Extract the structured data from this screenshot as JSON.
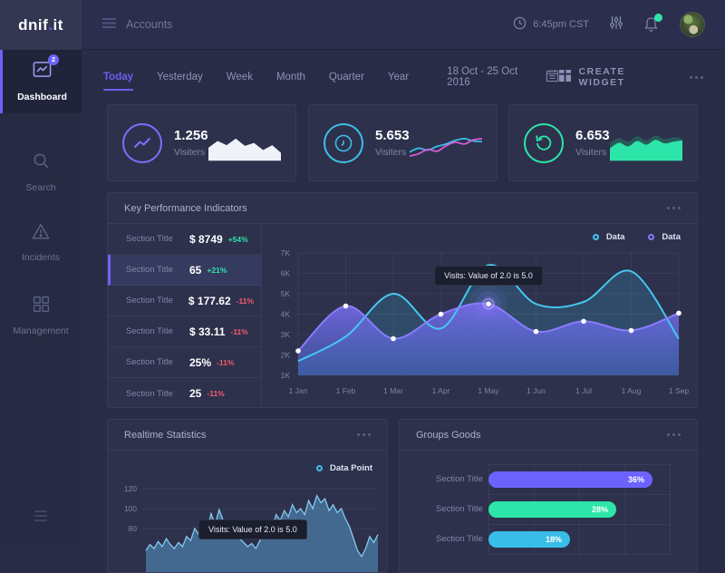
{
  "colors": {
    "accent": "#6C63FF",
    "cyan": "#3FBEEA",
    "green": "#2EE5A9",
    "magenta": "#D65BD6",
    "red": "#F35B6E",
    "white_line": "#EFF2F7"
  },
  "brand": {
    "logo_left": "dnif",
    "logo_dot": ".",
    "logo_right": "it"
  },
  "topbar": {
    "accounts_label": "Accounts",
    "time": "6:45pm CST"
  },
  "sidebar": {
    "items": [
      {
        "label": "Dashboard",
        "badge": "2",
        "active": true
      },
      {
        "label": "Search"
      },
      {
        "label": "Incidents"
      },
      {
        "label": "Management"
      }
    ]
  },
  "filters": {
    "tabs": [
      "Today",
      "Yesterday",
      "Week",
      "Month",
      "Quarter",
      "Year"
    ],
    "active_tab": "Today",
    "date_range": "18 Oct - 25 Oct 2016",
    "create_widget_label": "CREATE WIDGET"
  },
  "stat_cards": [
    {
      "value": "1.256",
      "label": "Visiters",
      "icon": "trend-line",
      "accent": "#7C6FFF",
      "spark": {
        "type": "area",
        "color": "#EFF2F7",
        "values": [
          38,
          60,
          46,
          68,
          44,
          54,
          30,
          46,
          20
        ]
      }
    },
    {
      "value": "5.653",
      "label": "Visiters",
      "icon": "clock",
      "accent": "#3FBEEA",
      "spark": {
        "type": "lines",
        "series": [
          {
            "color": "#3FBEEA",
            "values": [
              24,
              36,
              30,
              42,
              50,
              62,
              68,
              60,
              58
            ]
          },
          {
            "color": "#D65BD6",
            "values": [
              10,
              18,
              32,
              26,
              44,
              56,
              50,
              64,
              68
            ]
          }
        ]
      }
    },
    {
      "value": "6.653",
      "label": "Visiters",
      "icon": "refresh",
      "accent": "#2EE5A9",
      "spark": {
        "type": "area2",
        "series": [
          {
            "color": "#265a58",
            "values": [
              54,
              70,
              58,
              76,
              62,
              78,
              66,
              72,
              68
            ]
          },
          {
            "color": "#2EE5A9",
            "values": [
              36,
              54,
              42,
              60,
              48,
              64,
              52,
              58,
              62
            ]
          }
        ]
      }
    }
  ],
  "kpi": {
    "rows": [
      {
        "title": "Section Title",
        "value": "$ 8749",
        "delta": "+54%",
        "trend": "up"
      },
      {
        "title": "Section Title",
        "value": "65",
        "delta": "+21%",
        "trend": "up",
        "active": true
      },
      {
        "title": "Section Title",
        "value": "$ 177.62",
        "delta": "-11%",
        "trend": "down"
      },
      {
        "title": "Section Title",
        "value": "$ 33.11",
        "delta": "-11%",
        "trend": "down"
      },
      {
        "title": "Section Title",
        "value": "25%",
        "delta": "-11%",
        "trend": "down"
      },
      {
        "title": "Section Title",
        "value": "25",
        "delta": "-11%",
        "trend": "down"
      }
    ]
  },
  "chart_data": [
    {
      "id": "kpi-trend",
      "type": "line",
      "title": "Key Performance Indicators",
      "x_labels": [
        "1 Jan",
        "1 Feb",
        "1 Mar",
        "1 Apr",
        "1 May",
        "1 Jun",
        "1 Jul",
        "1 Aug",
        "1 Sep"
      ],
      "y_ticks": [
        "7K",
        "6K",
        "5K",
        "4K",
        "3K",
        "2K",
        "1K"
      ],
      "y_range_k": [
        1,
        7
      ],
      "grid": true,
      "legend_position": "top-right",
      "series": [
        {
          "name": "Data",
          "color": "#45C7F0",
          "fill": "rgba(56,170,210,0.22)",
          "area": true,
          "values_k": [
            1.7,
            2.9,
            5.0,
            3.3,
            6.4,
            4.5,
            4.6,
            6.1,
            2.8
          ]
        },
        {
          "name": "Data",
          "color": "#8A7BFF",
          "fill_gradient": [
            "rgba(125,110,245,0.85)",
            "rgba(76,106,216,0.5)"
          ],
          "area": true,
          "points": true,
          "active_index": 4,
          "values_k": [
            2.2,
            4.4,
            2.8,
            4.0,
            4.5,
            3.15,
            3.65,
            3.2,
            4.05
          ]
        }
      ],
      "tooltip": "Visits: Value of 2.0 is 5.0"
    },
    {
      "id": "realtime",
      "type": "area",
      "title": "Realtime Statistics",
      "legend": "Data Point",
      "line_color": "#85C8EC",
      "fill_color": "rgba(86,152,203,0.55)",
      "legend_ring": "#3FBEEA",
      "y_ticks": [
        120,
        100,
        80
      ],
      "values": [
        58,
        64,
        60,
        67,
        62,
        70,
        64,
        60,
        66,
        62,
        72,
        68,
        80,
        74,
        88,
        78,
        95,
        84,
        99,
        88,
        80,
        84,
        76,
        70,
        66,
        62,
        65,
        60,
        68,
        74,
        86,
        80,
        94,
        88,
        98,
        92,
        104,
        96,
        100,
        94,
        108,
        100,
        113,
        106,
        110,
        98,
        104,
        96,
        100,
        90,
        82,
        70,
        58,
        52,
        60,
        72,
        66,
        74
      ],
      "tooltip": "Visits: Value of 2.0 is 5.0"
    },
    {
      "id": "groups-goods",
      "type": "bar",
      "title": "Groups Goods",
      "categories": [
        "Section Title",
        "Section Title",
        "Section Title"
      ],
      "values_pct": [
        36,
        28,
        18
      ],
      "x_max_pct": 40,
      "bar_colors": [
        "#6C63FF",
        "#2EE5A9",
        "#38BDE8"
      ]
    }
  ]
}
